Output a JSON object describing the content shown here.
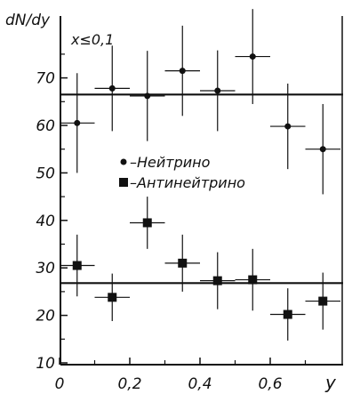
{
  "chart_data": {
    "type": "scatter",
    "ylabel": "dN/dy",
    "xlabel": "y",
    "annotation": "x≤0,1",
    "xlim": [
      0,
      0.7
    ],
    "ylim": [
      10,
      80
    ],
    "x_ticks": [
      {
        "value": 0,
        "label": "0"
      },
      {
        "value": 0.2,
        "label": "0,2"
      },
      {
        "value": 0.4,
        "label": "0,4"
      },
      {
        "value": 0.6,
        "label": "0,6"
      }
    ],
    "y_ticks": [
      {
        "value": 10,
        "label": "10"
      },
      {
        "value": 20,
        "label": "20"
      },
      {
        "value": 30,
        "label": "30"
      },
      {
        "value": 40,
        "label": "40"
      },
      {
        "value": 50,
        "label": "50"
      },
      {
        "value": 60,
        "label": "60"
      },
      {
        "value": 70,
        "label": "70"
      }
    ],
    "series": [
      {
        "name": "Нейтрино",
        "marker": "circle",
        "fit_level": 66.5,
        "points": [
          {
            "x": 0.05,
            "y": 60.5,
            "err": 10.5
          },
          {
            "x": 0.15,
            "y": 67.8,
            "err": 9.0
          },
          {
            "x": 0.25,
            "y": 66.2,
            "err": 9.5
          },
          {
            "x": 0.35,
            "y": 71.5,
            "err": 9.5
          },
          {
            "x": 0.45,
            "y": 67.3,
            "err": 8.5
          },
          {
            "x": 0.55,
            "y": 74.5,
            "err": 10.0
          },
          {
            "x": 0.65,
            "y": 59.8,
            "err": 9.0
          },
          {
            "x": 0.75,
            "y": 55.0,
            "err": 9.5
          }
        ]
      },
      {
        "name": "Антинейтрино",
        "marker": "square",
        "fit_level": 26.8,
        "points": [
          {
            "x": 0.05,
            "y": 30.5,
            "err": 6.5
          },
          {
            "x": 0.15,
            "y": 23.8,
            "err": 5.0
          },
          {
            "x": 0.25,
            "y": 39.5,
            "err": 5.5
          },
          {
            "x": 0.35,
            "y": 31.0,
            "err": 6.0
          },
          {
            "x": 0.45,
            "y": 27.3,
            "err": 6.0
          },
          {
            "x": 0.55,
            "y": 27.5,
            "err": 6.5
          },
          {
            "x": 0.65,
            "y": 20.2,
            "err": 5.5
          },
          {
            "x": 0.75,
            "y": 23.0,
            "err": 6.0
          }
        ]
      }
    ],
    "legend": [
      {
        "marker": "circle",
        "label": "–Нейтрино"
      },
      {
        "marker": "square",
        "label": "–Антинейтрино"
      }
    ],
    "legend_position": "center"
  }
}
